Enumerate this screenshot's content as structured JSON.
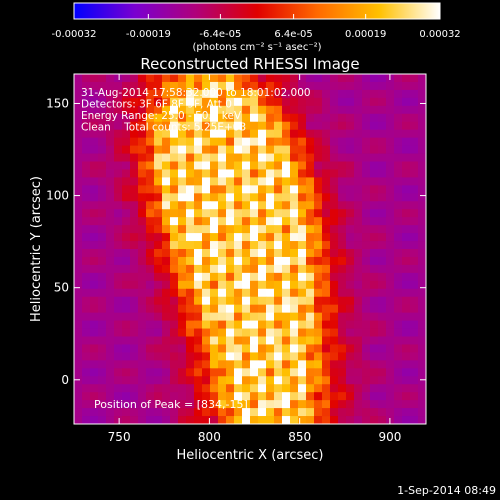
{
  "colorbar": {
    "tick_labels": [
      "-0.00032",
      "-0.00019",
      "-6.4e-05",
      "6.4e-05",
      "0.00019",
      "0.00032"
    ],
    "tick_values": [
      -0.00032,
      -0.00019,
      -6.4e-05,
      6.4e-05,
      0.00019,
      0.00032
    ],
    "range": [
      -0.00032,
      0.00032
    ],
    "unit_label": "(photons cm⁻² s⁻¹ asec⁻²)",
    "colors": [
      "#0000ff",
      "#7a00d0",
      "#b0007a",
      "#e00000",
      "#ff6a00",
      "#ffc000",
      "#ffffff"
    ]
  },
  "chart_data": {
    "type": "heatmap",
    "title": "Reconstructed RHESSI Image",
    "xlabel": "Heliocentric X (arcsec)",
    "ylabel": "Heliocentric Y (arcsec)",
    "xlim": [
      725,
      920
    ],
    "ylim": [
      -24,
      166
    ],
    "x_ticks": [
      750,
      800,
      850,
      900
    ],
    "x_tick_labels": [
      "750",
      "800",
      "850",
      "900"
    ],
    "y_ticks": [
      0,
      50,
      100,
      150
    ],
    "y_tick_labels": [
      "0",
      "50",
      "100",
      "150"
    ],
    "grid": false,
    "annotations": [
      "31-Aug-2014 17:58:32.000 to 18:01:02.000",
      "Detectors: 3F 6F 8F 9F, Att 0",
      "Energy Range: 25.0 - 50.0 keV",
      "Clean    Total counts: 5.25E+03"
    ],
    "peak_label": "Position of Peak = [834,-15]",
    "emission_ridge": [
      {
        "x": 795,
        "y": 140,
        "level": 0.8
      },
      {
        "x": 805,
        "y": 115,
        "level": 0.95
      },
      {
        "x": 815,
        "y": 100,
        "level": 1.0
      },
      {
        "x": 820,
        "y": 80,
        "level": 0.9
      },
      {
        "x": 825,
        "y": 60,
        "level": 0.85
      },
      {
        "x": 830,
        "y": 30,
        "level": 0.8
      },
      {
        "x": 834,
        "y": -15,
        "level": 1.0
      }
    ]
  },
  "footer": {
    "timestamp": "1-Sep-2014 08:49"
  }
}
